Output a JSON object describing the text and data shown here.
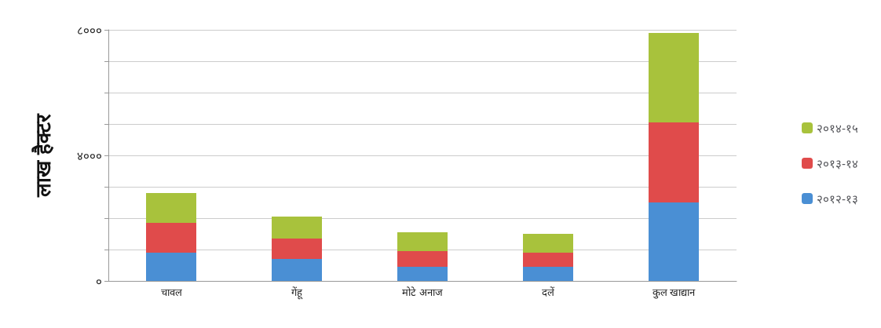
{
  "chart_data": {
    "type": "bar",
    "stacked": true,
    "ylabel": "लाख हैक्टर",
    "categories": [
      "चावल",
      "गेंहू",
      "मोटे अनाज",
      "दलें",
      "कुल खाद्यान"
    ],
    "series": [
      {
        "name": "२०१२-१३",
        "color": "#4a8fd4",
        "values": [
          900,
          700,
          450,
          450,
          2500
        ]
      },
      {
        "name": "२०१३-१४",
        "color": "#e04b4b",
        "values": [
          950,
          650,
          500,
          450,
          2550
        ]
      },
      {
        "name": "२०१४-१५",
        "color": "#a8c23c",
        "values": [
          950,
          700,
          600,
          600,
          2850
        ]
      }
    ],
    "ylim": [
      0,
      8000
    ],
    "yticks": [
      {
        "value": 0,
        "label": "०"
      },
      {
        "value": 1000,
        "label": null
      },
      {
        "value": 2000,
        "label": null
      },
      {
        "value": 3000,
        "label": null
      },
      {
        "value": 4000,
        "label": "४०००"
      },
      {
        "value": 5000,
        "label": null
      },
      {
        "value": 6000,
        "label": null
      },
      {
        "value": 7000,
        "label": null
      },
      {
        "value": 8000,
        "label": "८०००"
      }
    ],
    "grid": "y",
    "legend": "right"
  }
}
